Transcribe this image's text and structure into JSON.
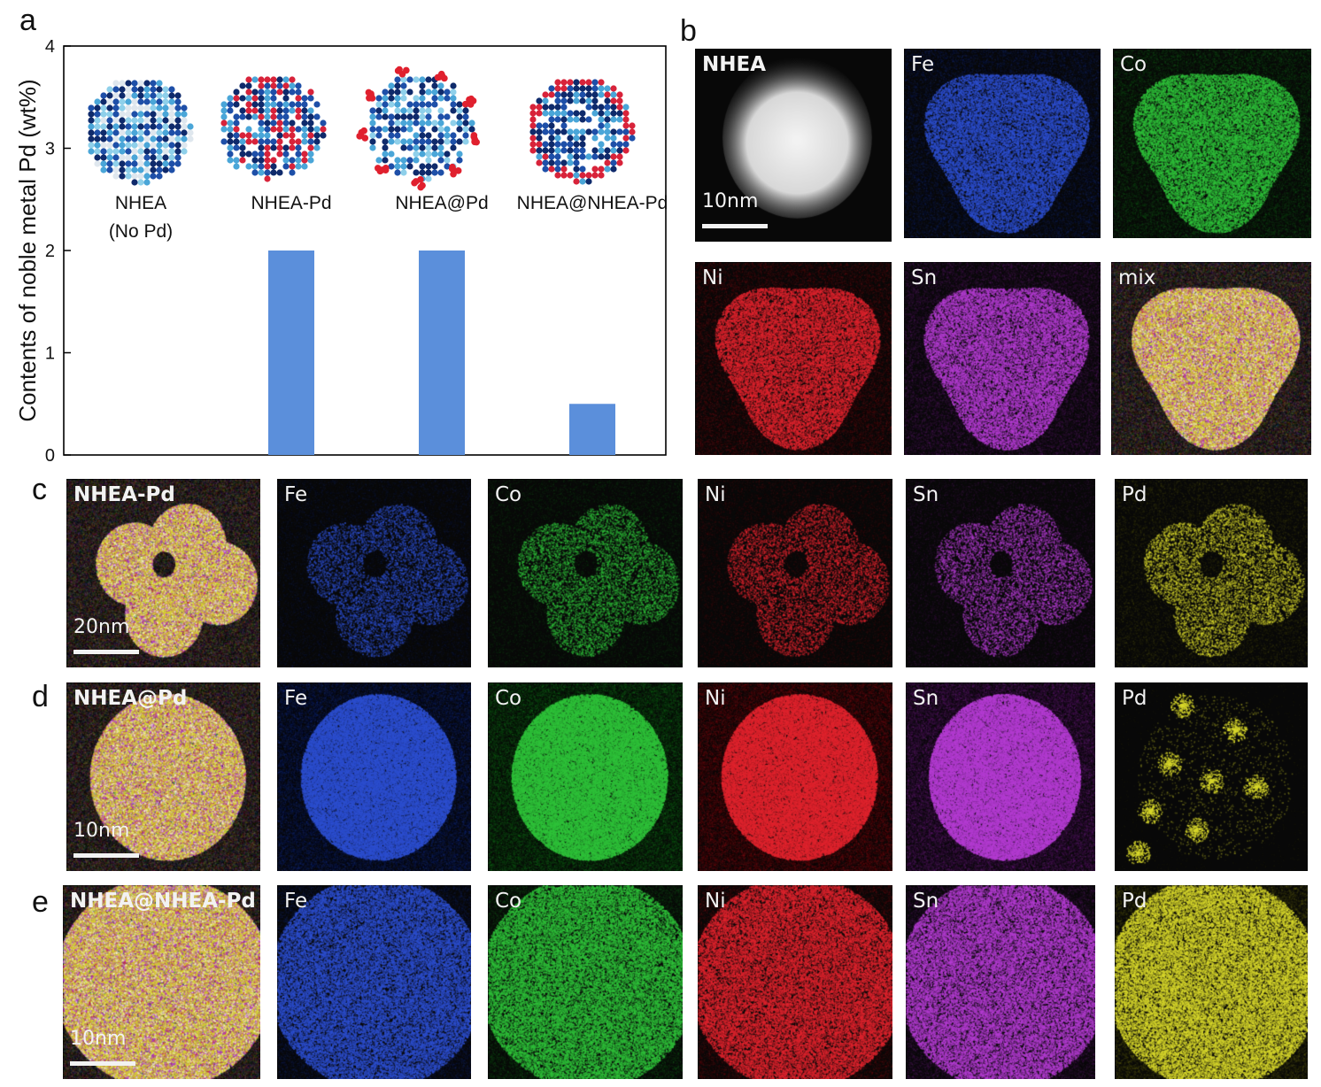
{
  "panel_labels": [
    "a",
    "b",
    "c",
    "d",
    "e"
  ],
  "colors": {
    "bar": "#5B8FDB",
    "Fe": "#2d4fd0",
    "Co": "#2fc23a",
    "Ni": "#e0242e",
    "Sn": "#b43cd2",
    "Pd": "#d9d92c",
    "mix": "#b66fd0",
    "HAADF": "#e8e8e8"
  },
  "chart_data": {
    "type": "bar",
    "categories": [
      "NHEA\n(No Pd)",
      "NHEA-Pd",
      "NHEA@Pd",
      "NHEA@NHEA-Pd"
    ],
    "values": [
      0,
      2,
      2,
      0.5
    ],
    "title": "",
    "xlabel": "",
    "ylabel": "Contents of noble metal Pd (wt%)",
    "ylim": [
      0,
      4
    ],
    "yticks": [
      "0",
      "1",
      "2",
      "3",
      "4"
    ],
    "grid": false,
    "legend": "none",
    "category_labels": [
      {
        "line1": "NHEA",
        "line2": "(No Pd)"
      },
      {
        "line1": "NHEA-Pd",
        "line2": ""
      },
      {
        "line1": "NHEA@Pd",
        "line2": ""
      },
      {
        "line1": "NHEA@NHEA-Pd",
        "line2": ""
      }
    ]
  },
  "eds_rows": {
    "b": {
      "panels": [
        {
          "label": "NHEA",
          "type": "HAADF",
          "scalebar": "10nm"
        },
        {
          "label": "Fe",
          "type": "Fe",
          "scalebar": ""
        },
        {
          "label": "Co",
          "type": "Co",
          "scalebar": ""
        },
        {
          "label": "Ni",
          "type": "Ni",
          "scalebar": ""
        },
        {
          "label": "Sn",
          "type": "Sn",
          "scalebar": ""
        },
        {
          "label": "mix",
          "type": "mix",
          "scalebar": ""
        }
      ]
    },
    "c": {
      "panels": [
        {
          "label": "NHEA-Pd",
          "type": "mix",
          "scalebar": "20nm"
        },
        {
          "label": "Fe",
          "type": "Fe",
          "scalebar": ""
        },
        {
          "label": "Co",
          "type": "Co",
          "scalebar": ""
        },
        {
          "label": "Ni",
          "type": "Ni",
          "scalebar": ""
        },
        {
          "label": "Sn",
          "type": "Sn",
          "scalebar": ""
        },
        {
          "label": "Pd",
          "type": "Pd",
          "scalebar": ""
        }
      ]
    },
    "d": {
      "panels": [
        {
          "label": "NHEA@Pd",
          "type": "mix",
          "scalebar": "10nm"
        },
        {
          "label": "Fe",
          "type": "Fe",
          "scalebar": ""
        },
        {
          "label": "Co",
          "type": "Co",
          "scalebar": ""
        },
        {
          "label": "Ni",
          "type": "Ni",
          "scalebar": ""
        },
        {
          "label": "Sn",
          "type": "Sn",
          "scalebar": ""
        },
        {
          "label": "Pd",
          "type": "Pd",
          "scalebar": ""
        }
      ]
    },
    "e": {
      "panels": [
        {
          "label": "NHEA@NHEA-Pd",
          "type": "mix",
          "scalebar": "10nm"
        },
        {
          "label": "Fe",
          "type": "Fe",
          "scalebar": ""
        },
        {
          "label": "Co",
          "type": "Co",
          "scalebar": ""
        },
        {
          "label": "Ni",
          "type": "Ni",
          "scalebar": ""
        },
        {
          "label": "Sn",
          "type": "Sn",
          "scalebar": ""
        },
        {
          "label": "Pd",
          "type": "Pd",
          "scalebar": ""
        }
      ]
    }
  }
}
